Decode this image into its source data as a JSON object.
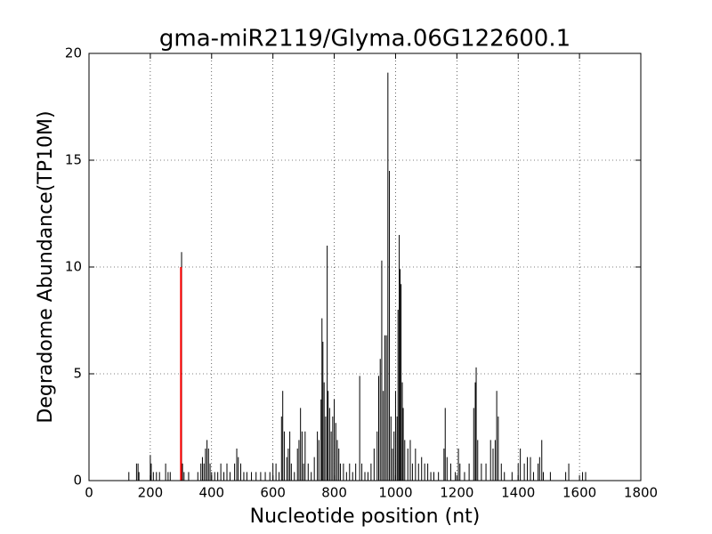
{
  "chart_data": {
    "type": "bar",
    "title": "gma-miR2119/Glyma.06G122600.1",
    "x_label": "Nucleotide position (nt)",
    "y_label": "Degradome Abundance(TP10M)",
    "xlim": [
      0,
      1800
    ],
    "xticks": [
      0,
      200,
      400,
      600,
      800,
      1000,
      1200,
      1400,
      1600,
      1800
    ],
    "ylim": [
      0,
      20
    ],
    "yticks": [
      0,
      5,
      10,
      15,
      20
    ],
    "grid": true,
    "series": [
      {
        "color": "#000000",
        "x": [
          130,
          155,
          160,
          163,
          200,
          203,
          210,
          220,
          230,
          250,
          258,
          265,
          302,
          305,
          310,
          325,
          355,
          365,
          370,
          375,
          380,
          385,
          390,
          395,
          400,
          410,
          420,
          430,
          440,
          450,
          460,
          475,
          482,
          487,
          495,
          505,
          515,
          530,
          545,
          560,
          575,
          590,
          600,
          610,
          620,
          628,
          632,
          637,
          645,
          650,
          655,
          660,
          670,
          680,
          685,
          690,
          695,
          700,
          705,
          715,
          725,
          735,
          745,
          750,
          757,
          760,
          763,
          767,
          772,
          777,
          780,
          785,
          790,
          795,
          800,
          805,
          810,
          815,
          820,
          830,
          840,
          850,
          860,
          870,
          883,
          890,
          900,
          910,
          920,
          930,
          940,
          945,
          950,
          955,
          960,
          965,
          970,
          975,
          980,
          985,
          990,
          995,
          1000,
          1005,
          1008,
          1012,
          1015,
          1018,
          1022,
          1025,
          1030,
          1040,
          1048,
          1055,
          1065,
          1075,
          1085,
          1095,
          1105,
          1115,
          1125,
          1140,
          1158,
          1162,
          1168,
          1180,
          1195,
          1205,
          1210,
          1225,
          1240,
          1255,
          1260,
          1263,
          1268,
          1280,
          1295,
          1310,
          1318,
          1325,
          1330,
          1335,
          1345,
          1355,
          1380,
          1400,
          1407,
          1420,
          1430,
          1440,
          1450,
          1465,
          1470,
          1477,
          1482,
          1505,
          1555,
          1565,
          1610,
          1620
        ],
        "values": [
          0.4,
          0.8,
          0.8,
          0.4,
          1.2,
          0.8,
          0.4,
          0.4,
          0.4,
          0.8,
          0.4,
          0.4,
          10.7,
          0.8,
          0.4,
          0.4,
          0.4,
          0.8,
          1.1,
          0.8,
          1.5,
          1.9,
          1.5,
          0.8,
          0.4,
          0.4,
          0.4,
          0.8,
          0.4,
          0.8,
          0.4,
          0.8,
          1.5,
          1.1,
          0.8,
          0.4,
          0.4,
          0.4,
          0.4,
          0.4,
          0.4,
          0.4,
          0.8,
          0.8,
          0.4,
          3.0,
          4.2,
          2.3,
          1.1,
          1.5,
          2.3,
          0.8,
          0.4,
          1.5,
          1.9,
          3.4,
          2.3,
          0.8,
          2.3,
          0.8,
          0.4,
          1.1,
          2.3,
          1.9,
          3.8,
          7.6,
          6.5,
          4.6,
          3.0,
          11.0,
          4.2,
          3.4,
          2.3,
          3.0,
          3.8,
          2.7,
          1.9,
          1.5,
          0.8,
          0.8,
          0.4,
          0.8,
          0.4,
          0.8,
          4.9,
          0.8,
          0.4,
          0.4,
          0.8,
          1.5,
          2.3,
          4.9,
          5.7,
          10.3,
          4.2,
          6.8,
          6.8,
          19.1,
          14.5,
          3.0,
          1.5,
          2.3,
          4.2,
          3.0,
          8.0,
          11.5,
          9.9,
          9.2,
          4.6,
          3.4,
          1.9,
          1.5,
          1.9,
          0.8,
          1.5,
          0.8,
          1.1,
          0.8,
          0.8,
          0.4,
          0.4,
          0.4,
          1.5,
          3.4,
          1.1,
          0.8,
          0.4,
          1.5,
          0.8,
          0.4,
          0.8,
          3.4,
          4.6,
          5.3,
          1.9,
          0.8,
          0.8,
          1.9,
          1.5,
          1.9,
          4.2,
          3.0,
          0.8,
          0.4,
          0.4,
          0.8,
          1.5,
          0.8,
          1.1,
          1.1,
          0.4,
          0.8,
          1.1,
          1.9,
          0.4,
          0.4,
          0.4,
          0.8,
          0.4,
          0.4
        ]
      },
      {
        "color": "#ff0000",
        "x": [
          300
        ],
        "values": [
          10
        ]
      }
    ]
  }
}
